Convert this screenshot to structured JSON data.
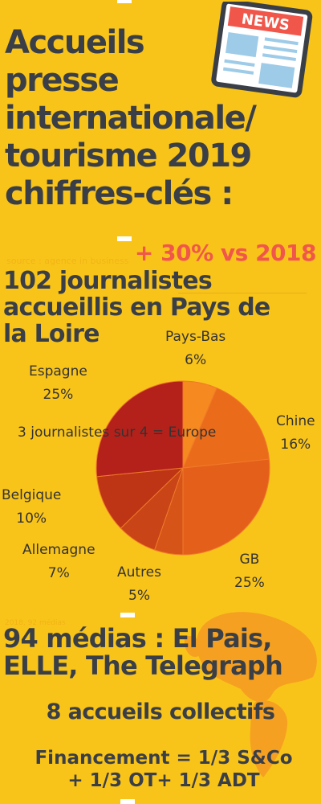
{
  "header": {
    "title": "Accueils\npresse\n internationale/\ntourisme 2019\nchiffres-clés :",
    "news_icon_text": "NEWS"
  },
  "stats": {
    "growth": "+ 30% vs 2018",
    "faint_source": "source : agence in business",
    "journalists": "102 journalistes\naccueillis en Pays de\nla Loire",
    "europe_note": "3 journalistes sur 4 = Europe"
  },
  "chart_data": {
    "type": "pie",
    "slices": [
      {
        "label": "Pays-Bas",
        "value": 6,
        "color": "#f6891f"
      },
      {
        "label": "Chine",
        "value": 16,
        "color": "#ea6c1b"
      },
      {
        "label": "GB",
        "value": 25,
        "color": "#e4601a"
      },
      {
        "label": "Autres",
        "value": 5,
        "color": "#d65418"
      },
      {
        "label": "Allemagne",
        "value": 7,
        "color": "#c94416"
      },
      {
        "label": "Belgique",
        "value": 10,
        "color": "#bd3515"
      },
      {
        "label": "Espagne",
        "value": 25,
        "color": "#b4211b"
      }
    ],
    "labels": [
      {
        "name": "Pays-Bas",
        "pct": "6%"
      },
      {
        "name": "Chine",
        "pct": "16%"
      },
      {
        "name": "GB",
        "pct": "25%"
      },
      {
        "name": "Autres",
        "pct": "5%"
      },
      {
        "name": "Allemagne",
        "pct": "7%"
      },
      {
        "name": "Belgique",
        "pct": "10%"
      },
      {
        "name": "Espagne",
        "pct": "25%"
      }
    ]
  },
  "footer": {
    "faint_year": "2018, 92 médias",
    "medias": "94 médias : El Pais,\nELLE, The Telegraph",
    "collectifs": "8 accueils collectifs",
    "financement": "Financement = 1/3  S&Co\n+ 1/3 OT+ 1/3 ADT"
  },
  "colors": {
    "background": "#f9c41a",
    "text": "#3a3f47",
    "accent": "#f0574a",
    "map": "#f5a021"
  }
}
